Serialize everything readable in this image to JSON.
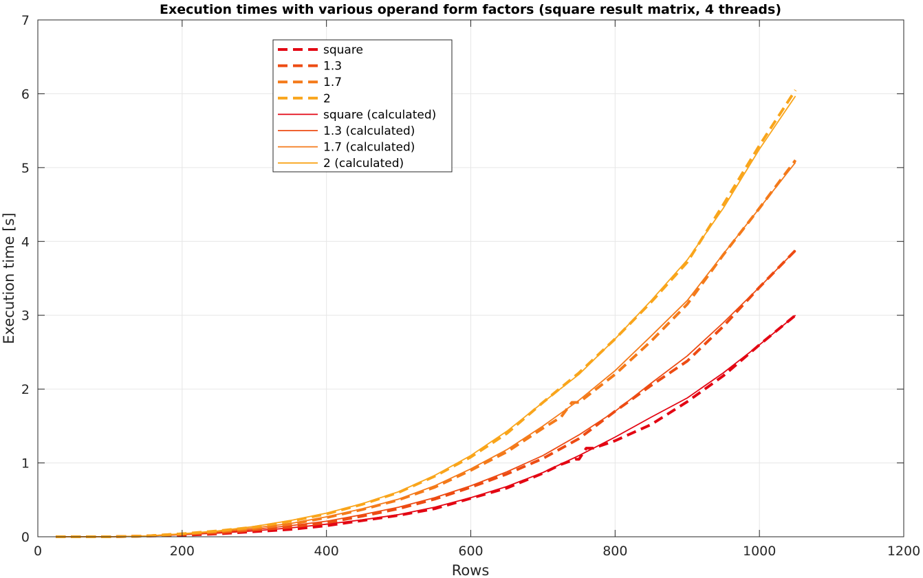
{
  "chart_data": {
    "type": "line",
    "title": "Execution times with various operand form factors (square result matrix, 4 threads)",
    "xlabel": "Rows",
    "ylabel": "Execution time [s]",
    "xlim": [
      0,
      1200
    ],
    "ylim": [
      0,
      7
    ],
    "xticks": [
      "0",
      "200",
      "400",
      "600",
      "800",
      "1000",
      "1200"
    ],
    "yticks": [
      "0",
      "1",
      "2",
      "3",
      "4",
      "5",
      "6",
      "7"
    ],
    "grid": true,
    "legend_position": "top-left-center",
    "series": [
      {
        "name": "square",
        "style": "dashed",
        "color": "#e30613",
        "x": [
          25,
          100,
          150,
          200,
          250,
          300,
          350,
          400,
          450,
          500,
          550,
          600,
          650,
          700,
          725,
          745,
          750,
          760,
          770,
          800,
          850,
          900,
          950,
          1000,
          1050
        ],
        "y": [
          0.0,
          0.0,
          0.01,
          0.02,
          0.04,
          0.07,
          0.1,
          0.15,
          0.22,
          0.29,
          0.38,
          0.52,
          0.66,
          0.86,
          0.98,
          1.05,
          1.05,
          1.2,
          1.2,
          1.3,
          1.52,
          1.83,
          2.18,
          2.6,
          3.0
        ]
      },
      {
        "name": "1.3",
        "style": "dashed",
        "color": "#ed4b13",
        "x": [
          25,
          100,
          150,
          200,
          250,
          300,
          350,
          400,
          450,
          500,
          550,
          600,
          650,
          700,
          750,
          800,
          850,
          900,
          950,
          1000,
          1050
        ],
        "y": [
          0.0,
          0.0,
          0.01,
          0.03,
          0.05,
          0.09,
          0.13,
          0.19,
          0.28,
          0.38,
          0.51,
          0.67,
          0.85,
          1.06,
          1.33,
          1.7,
          2.05,
          2.38,
          2.85,
          3.38,
          3.88
        ]
      },
      {
        "name": "1.7",
        "style": "dashed",
        "color": "#f47a1a",
        "x": [
          25,
          100,
          150,
          200,
          250,
          300,
          350,
          400,
          450,
          500,
          550,
          600,
          650,
          700,
          725,
          740,
          750,
          800,
          850,
          900,
          950,
          1000,
          1050
        ],
        "y": [
          0.0,
          0.0,
          0.01,
          0.04,
          0.07,
          0.11,
          0.17,
          0.26,
          0.37,
          0.5,
          0.67,
          0.9,
          1.15,
          1.47,
          1.62,
          1.82,
          1.82,
          2.2,
          2.65,
          3.15,
          3.82,
          4.45,
          5.1
        ]
      },
      {
        "name": "2",
        "style": "dashed",
        "color": "#f9a51b",
        "x": [
          25,
          100,
          150,
          200,
          250,
          300,
          350,
          400,
          450,
          500,
          550,
          600,
          650,
          700,
          750,
          800,
          850,
          900,
          950,
          1000,
          1050
        ],
        "y": [
          0.0,
          0.0,
          0.01,
          0.04,
          0.08,
          0.13,
          0.21,
          0.31,
          0.44,
          0.6,
          0.82,
          1.08,
          1.4,
          1.82,
          2.22,
          2.68,
          3.18,
          3.72,
          4.5,
          5.3,
          6.05
        ]
      },
      {
        "name": "square (calculated)",
        "style": "solid",
        "color": "#e30613",
        "x": [
          25,
          100,
          150,
          200,
          250,
          300,
          350,
          400,
          450,
          500,
          550,
          600,
          650,
          700,
          750,
          800,
          850,
          900,
          950,
          1000,
          1050
        ],
        "y": [
          0.0,
          0.0,
          0.01,
          0.03,
          0.05,
          0.08,
          0.12,
          0.17,
          0.23,
          0.3,
          0.4,
          0.53,
          0.68,
          0.87,
          1.1,
          1.35,
          1.62,
          1.88,
          2.22,
          2.6,
          3.0
        ]
      },
      {
        "name": "1.3 (calculated)",
        "style": "solid",
        "color": "#ed4b13",
        "x": [
          25,
          100,
          150,
          200,
          250,
          300,
          350,
          400,
          450,
          500,
          550,
          600,
          650,
          700,
          750,
          800,
          850,
          900,
          950,
          1000,
          1050
        ],
        "y": [
          0.0,
          0.0,
          0.01,
          0.03,
          0.06,
          0.1,
          0.15,
          0.21,
          0.3,
          0.4,
          0.53,
          0.69,
          0.88,
          1.1,
          1.38,
          1.7,
          2.08,
          2.45,
          2.9,
          3.38,
          3.88
        ]
      },
      {
        "name": "1.7 (calculated)",
        "style": "solid",
        "color": "#f47a1a",
        "x": [
          25,
          100,
          150,
          200,
          250,
          300,
          350,
          400,
          450,
          500,
          550,
          600,
          650,
          700,
          750,
          800,
          850,
          900,
          950,
          1000,
          1050
        ],
        "y": [
          0.0,
          0.0,
          0.01,
          0.04,
          0.07,
          0.12,
          0.18,
          0.27,
          0.38,
          0.51,
          0.69,
          0.92,
          1.18,
          1.5,
          1.85,
          2.25,
          2.72,
          3.2,
          3.83,
          4.45,
          5.07
        ]
      },
      {
        "name": "2 (calculated)",
        "style": "solid",
        "color": "#f9a51b",
        "x": [
          25,
          100,
          150,
          200,
          250,
          300,
          350,
          400,
          450,
          500,
          550,
          600,
          650,
          700,
          750,
          800,
          850,
          900,
          950,
          1000,
          1050
        ],
        "y": [
          0.0,
          0.0,
          0.01,
          0.04,
          0.08,
          0.14,
          0.22,
          0.32,
          0.45,
          0.61,
          0.83,
          1.1,
          1.43,
          1.82,
          2.2,
          2.68,
          3.2,
          3.75,
          4.45,
          5.25,
          5.97
        ]
      }
    ]
  }
}
